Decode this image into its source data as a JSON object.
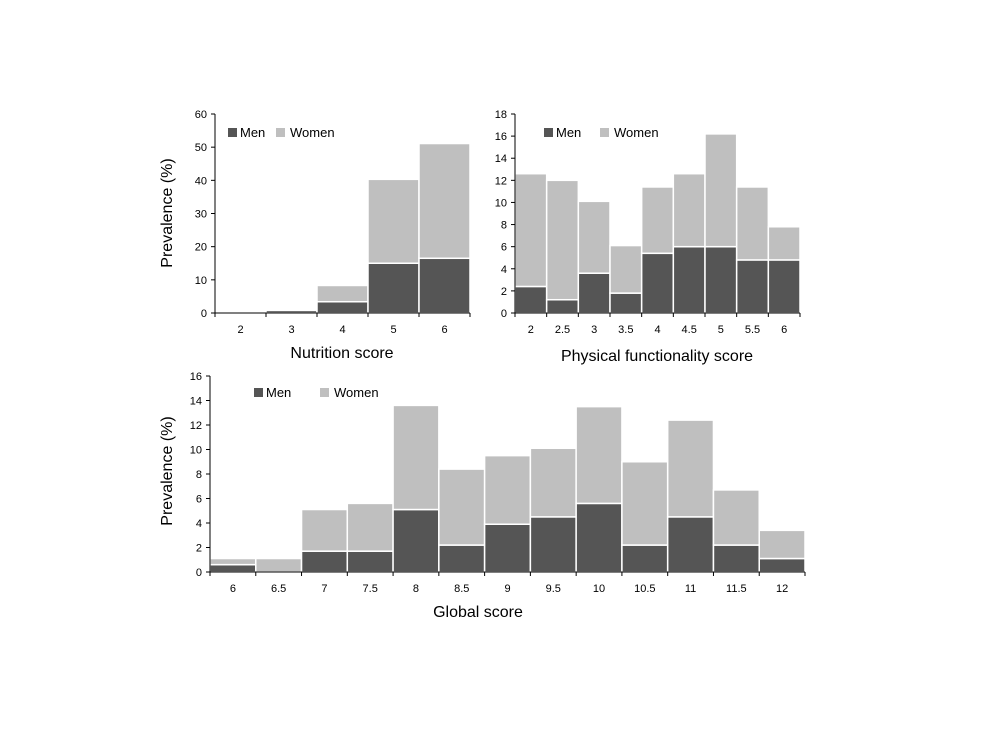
{
  "colors": {
    "men": "#555555",
    "women": "#bfbfbf",
    "axis": "#000000",
    "bar_outline": "#ffffff"
  },
  "legend": {
    "men": "Men",
    "women": "Women"
  },
  "chart_data": [
    {
      "type": "bar",
      "stacked": true,
      "xlabel": "Nutrition score",
      "ylabel": "Prevalence (%)",
      "ylim": [
        0,
        60
      ],
      "yticks": [
        "0",
        "10",
        "20",
        "30",
        "40",
        "50",
        "60"
      ],
      "categories": [
        "2",
        "3",
        "4",
        "5",
        "6"
      ],
      "series": [
        {
          "name": "Men",
          "values": [
            0,
            0.8,
            3.4,
            15.0,
            16.5
          ]
        },
        {
          "name": "Women",
          "values": [
            0,
            0.3,
            4.9,
            25.3,
            34.6
          ]
        }
      ],
      "legend_position": "top-left",
      "grid": false
    },
    {
      "type": "bar",
      "stacked": true,
      "xlabel": "Physical functionality score",
      "ylabel": "",
      "ylim": [
        0,
        18
      ],
      "yticks": [
        "0",
        "2",
        "4",
        "6",
        "8",
        "10",
        "12",
        "14",
        "16",
        "18"
      ],
      "categories": [
        "2",
        "2.5",
        "3",
        "3.5",
        "4",
        "4.5",
        "5",
        "5.5",
        "6"
      ],
      "series": [
        {
          "name": "Men",
          "values": [
            2.4,
            1.2,
            3.6,
            1.8,
            5.4,
            6.0,
            6.0,
            4.8,
            4.8
          ]
        },
        {
          "name": "Women",
          "values": [
            10.2,
            10.8,
            6.5,
            4.3,
            6.0,
            6.6,
            10.2,
            6.6,
            3.0
          ]
        }
      ],
      "legend_position": "top-left",
      "grid": false
    },
    {
      "type": "bar",
      "stacked": true,
      "xlabel": "Global score",
      "ylabel": "Prevalence (%)",
      "ylim": [
        0,
        16
      ],
      "yticks": [
        "0",
        "2",
        "4",
        "6",
        "8",
        "10",
        "12",
        "14",
        "16"
      ],
      "categories": [
        "6",
        "6.5",
        "7",
        "7.5",
        "8",
        "8.5",
        "9",
        "9.5",
        "10",
        "10.5",
        "11",
        "11.5",
        "12"
      ],
      "series": [
        {
          "name": "Men",
          "values": [
            0.6,
            0,
            1.7,
            1.7,
            5.1,
            2.2,
            3.9,
            4.5,
            5.6,
            2.2,
            4.5,
            2.2,
            1.1
          ]
        },
        {
          "name": "Women",
          "values": [
            0.5,
            1.1,
            3.4,
            3.9,
            8.5,
            6.2,
            5.6,
            5.6,
            7.9,
            6.8,
            7.9,
            4.5,
            2.3
          ]
        }
      ],
      "legend_position": "top-left",
      "grid": false
    }
  ]
}
